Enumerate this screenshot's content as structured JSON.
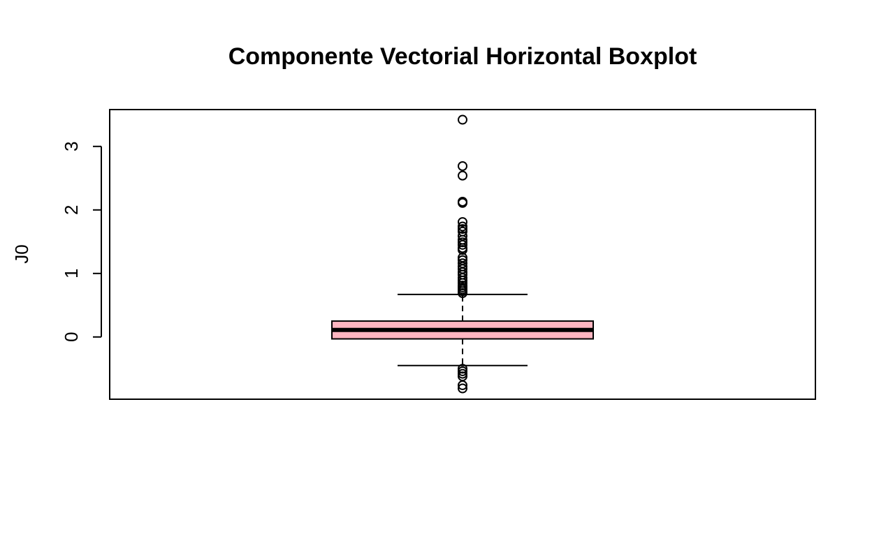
{
  "chart_data": {
    "type": "boxplot",
    "title": "Componente Vectorial Horizontal Boxplot",
    "xlabel": "",
    "ylabel": "J0",
    "ylim": [
      -0.98,
      3.58
    ],
    "yticks": [
      0,
      1,
      2,
      3
    ],
    "yticklabels": [
      "0",
      "1",
      "2",
      "3"
    ],
    "grid": false,
    "box": {
      "fill": "#ffb6c1",
      "q1": -0.03,
      "median": 0.11,
      "q3": 0.25,
      "whisker_low": -0.45,
      "whisker_high": 0.67
    },
    "outliers": [
      3.42,
      2.69,
      2.54,
      2.13,
      2.11,
      1.81,
      1.74,
      1.7,
      1.66,
      1.59,
      1.53,
      1.49,
      1.45,
      1.4,
      1.37,
      1.25,
      1.21,
      1.16,
      1.11,
      1.07,
      1.02,
      0.98,
      0.93,
      0.89,
      0.85,
      0.81,
      0.78,
      0.75,
      0.72,
      0.69,
      -0.5,
      -0.54,
      -0.58,
      -0.62,
      -0.76,
      -0.81
    ]
  }
}
